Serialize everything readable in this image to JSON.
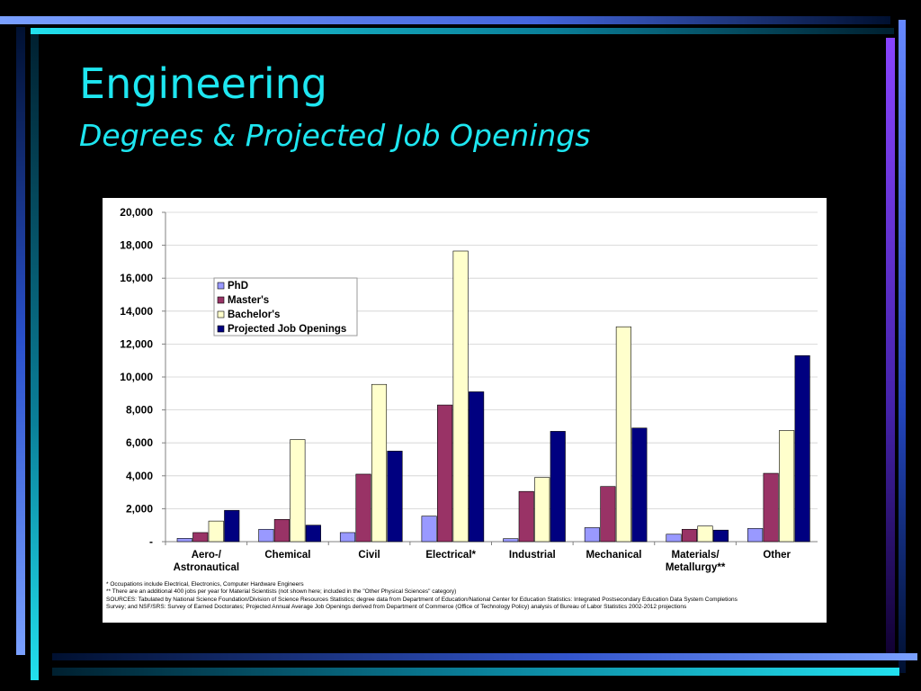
{
  "slide": {
    "title": "Engineering",
    "subtitle": "Degrees & Projected Job Openings"
  },
  "colors": {
    "background": "#000000",
    "title": "#1ee6f0",
    "phd": "#9999ff",
    "masters": "#993366",
    "bachelors": "#ffffcc",
    "jobs": "#000080"
  },
  "chart_data": {
    "type": "bar",
    "categories": [
      "Aero-/\nAstronautical",
      "Chemical",
      "Civil",
      "Electrical*",
      "Industrial",
      "Mechanical",
      "Materials/\nMetallurgy**",
      "Other"
    ],
    "series": [
      {
        "name": "PhD",
        "values": [
          200,
          750,
          550,
          1550,
          180,
          850,
          450,
          800
        ]
      },
      {
        "name": "Master's",
        "values": [
          550,
          1350,
          4100,
          8300,
          3050,
          3350,
          750,
          4150
        ]
      },
      {
        "name": "Bachelor's",
        "values": [
          1250,
          6200,
          9550,
          17650,
          3900,
          13050,
          950,
          6750
        ]
      },
      {
        "name": "Projected Job Openings",
        "values": [
          1900,
          1000,
          5500,
          9100,
          6700,
          6900,
          700,
          11300
        ]
      }
    ],
    "y_ticks": [
      "-",
      "2,000",
      "4,000",
      "6,000",
      "8,000",
      "10,000",
      "12,000",
      "14,000",
      "16,000",
      "18,000",
      "20,000"
    ],
    "ylim": [
      0,
      20000
    ],
    "grid": true,
    "legend_position": "top-left"
  },
  "notes": [
    "*   Occupations include Electrical, Electronics, Computer Hardware Engineers",
    "** There are an additional 400 jobs per year for Material Scientists (not shown here; included in the \"Other Physical Sciences\" category)",
    "SOURCES:    Tabulated by National Science Foundation/Division of Science Resources Statistics; degree data from Department of Education/National Center for Education Statistics:  Integrated Postsecondary Education Data System Completions",
    "Survey; and NSF/SRS: Survey of Earned Doctorates; Projected Annual Average Job Openings derived from Department of Commerce (Office of Technology Policy) analysis of Bureau of Labor Statistics 2002-2012 projections"
  ]
}
